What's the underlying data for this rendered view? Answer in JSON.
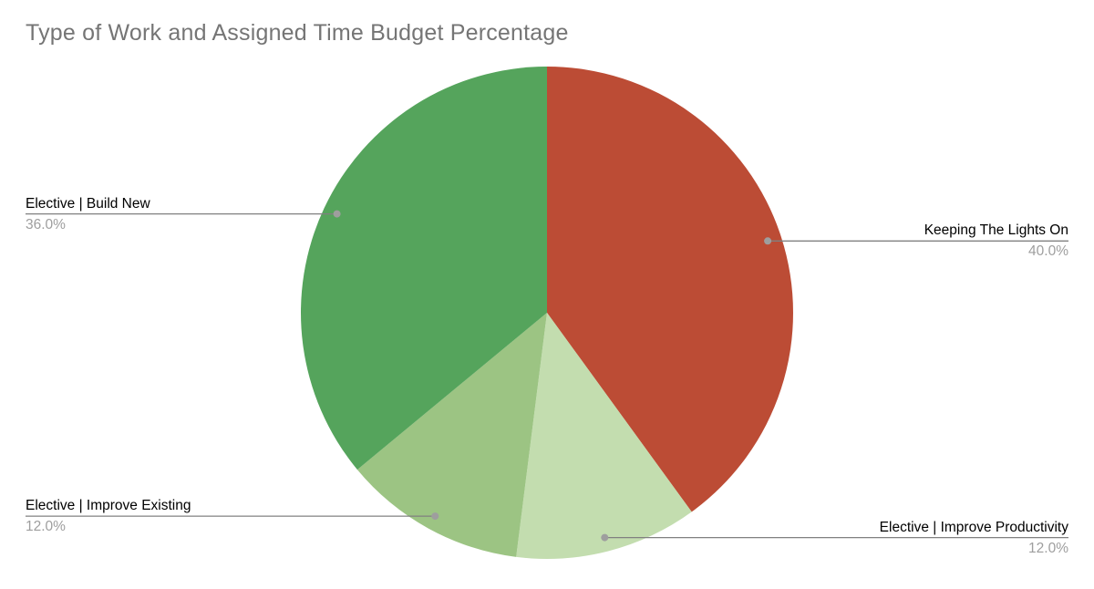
{
  "chart_data": {
    "type": "pie",
    "title": "Type of Work and Assigned Time Budget Percentage",
    "title_color": "#757575",
    "start_angle_deg": 0,
    "direction": "clockwise",
    "legend": "none",
    "labeling": "outside-callout-lines",
    "slices": [
      {
        "label": "Keeping The Lights On",
        "value": 40.0,
        "pct_label": "40.0%",
        "color": "#bc4c35",
        "label_side": "right"
      },
      {
        "label": "Elective | Improve Productivity",
        "value": 12.0,
        "pct_label": "12.0%",
        "color": "#c3ddaf",
        "label_side": "right"
      },
      {
        "label": "Elective | Improve Existing",
        "value": 12.0,
        "pct_label": "12.0%",
        "color": "#9cc483",
        "label_side": "left"
      },
      {
        "label": "Elective | Build New",
        "value": 36.0,
        "pct_label": "36.0%",
        "color": "#55a45c",
        "label_side": "left"
      }
    ],
    "label_text_color": "#000000",
    "pct_text_color": "#9e9e9e",
    "leader_line_color": "#808080",
    "leader_dot_color": "#9e9e9e",
    "background_color": "#ffffff"
  }
}
